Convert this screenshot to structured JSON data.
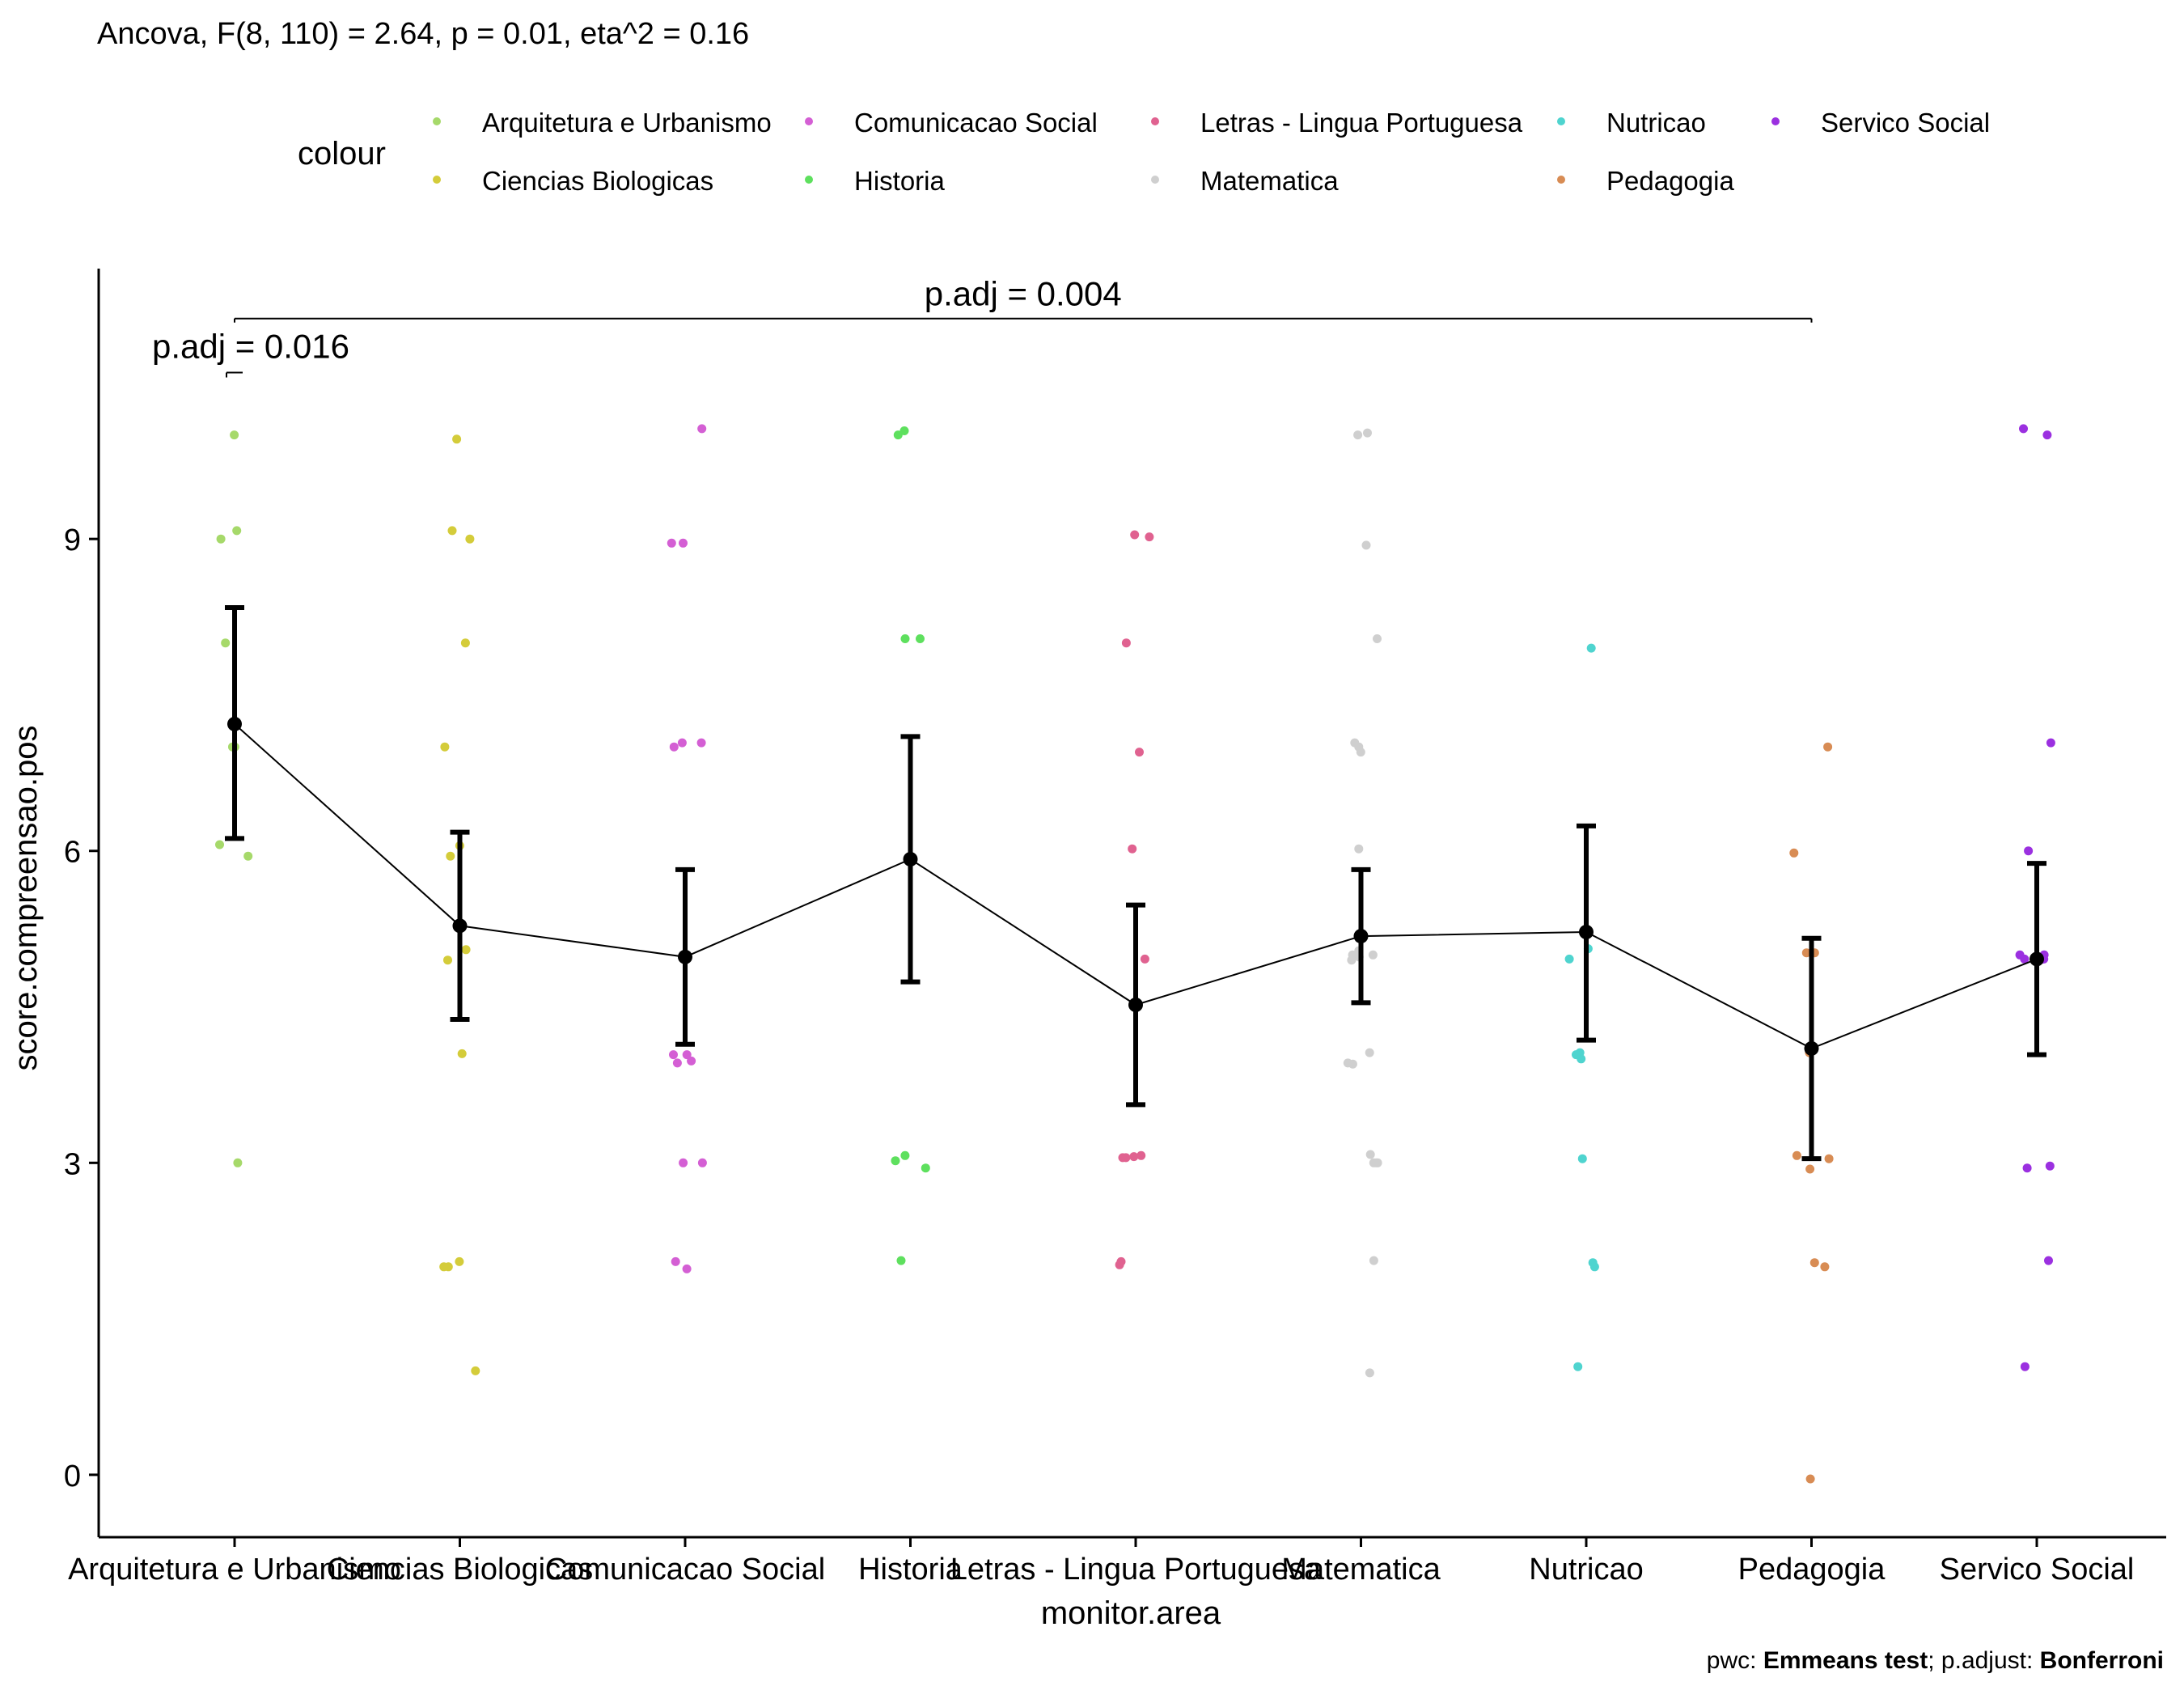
{
  "title": "Ancova, F(8, 110) = 2.64, p = 0.01, eta^2 = 0.16",
  "caption": {
    "pwc_prefix": "pwc: ",
    "pwc_value": "Emmeans test",
    "sep": "; p.adjust: ",
    "adjust_value": "Bonferroni"
  },
  "legend": {
    "title": "colour",
    "position": "top",
    "items": [
      {
        "label": "Arquitetura e Urbanismo",
        "color": "#a6d96a"
      },
      {
        "label": "Ciencias Biologicas",
        "color": "#d4cc3a"
      },
      {
        "label": "Comunicacao Social",
        "color": "#d45fd4"
      },
      {
        "label": "Historia",
        "color": "#5ee05e"
      },
      {
        "label": "Letras - Lingua Portuguesa",
        "color": "#e06290"
      },
      {
        "label": "Matematica",
        "color": "#cfcfcf"
      },
      {
        "label": "Nutricao",
        "color": "#4fd4cf"
      },
      {
        "label": "Pedagogia",
        "color": "#d88c54"
      },
      {
        "label": "Servico Social",
        "color": "#9b30e0"
      }
    ]
  },
  "chart_data": {
    "type": "scatter",
    "xlabel": "monitor.area",
    "ylabel": "score.compreensao.pos",
    "ylim": [
      -0.6,
      11.6
    ],
    "yticks": [
      0,
      3,
      6,
      9
    ],
    "categories": [
      "Arquitetura e Urbanismo",
      "Ciencias Biologicas",
      "Comunicacao Social",
      "Historia",
      "Letras - Lingua Portuguesa",
      "Matematica",
      "Nutricao",
      "Pedagogia",
      "Servico Social"
    ],
    "means": [
      7.22,
      5.28,
      4.98,
      5.92,
      4.52,
      5.18,
      5.22,
      4.1,
      4.96
    ],
    "ci_low": [
      6.12,
      4.38,
      4.14,
      4.74,
      3.56,
      4.54,
      4.18,
      3.04,
      4.04
    ],
    "ci_high": [
      8.34,
      6.18,
      5.82,
      7.1,
      5.48,
      5.82,
      6.24,
      5.16,
      5.88
    ],
    "points": [
      [
        10,
        9.08,
        9,
        8,
        7,
        7,
        6.06,
        5.95,
        3
      ],
      [
        9.96,
        9.08,
        9,
        8,
        7,
        6.05,
        5.95,
        5.05,
        4.95,
        4.05,
        2.05,
        2,
        2,
        1
      ],
      [
        10.06,
        8.96,
        8.96,
        7.04,
        7,
        7.04,
        4.04,
        3.98,
        3.96,
        4.04,
        3,
        3,
        2.05,
        1.98
      ],
      [
        10.04,
        10,
        8.04,
        8.04,
        3.07,
        3.02,
        2.95,
        2.06
      ],
      [
        9.02,
        9.04,
        8,
        6.95,
        6.02,
        4.96,
        3.07,
        3.05,
        3.05,
        3.06,
        2.05,
        2.02
      ],
      [
        10,
        10.02,
        8.94,
        8.04,
        7.04,
        7,
        6.95,
        6.02,
        5,
        4.98,
        5.04,
        5,
        4.95,
        4.06,
        3.96,
        3.95,
        3.08,
        3,
        3,
        3,
        2.06,
        0.98
      ],
      [
        7.95,
        5.06,
        4.96,
        4.06,
        4,
        4.04,
        3.04,
        2.04,
        2,
        1.04
      ],
      [
        7,
        5.98,
        5.02,
        5.02,
        4.06,
        3.07,
        3.04,
        2.94,
        2,
        2.04,
        -0.04
      ],
      [
        10.06,
        10,
        7.04,
        6,
        5,
        4.96,
        5,
        4.96,
        4.96,
        2.97,
        2.95,
        2.06,
        1.04
      ]
    ],
    "brackets": [
      {
        "from": 0,
        "to": 7,
        "y": 11.12,
        "label": "p.adj = 0.004"
      },
      {
        "from": 0,
        "to": 0,
        "y": 10.6,
        "label": "p.adj = 0.016"
      }
    ],
    "grid": false
  }
}
